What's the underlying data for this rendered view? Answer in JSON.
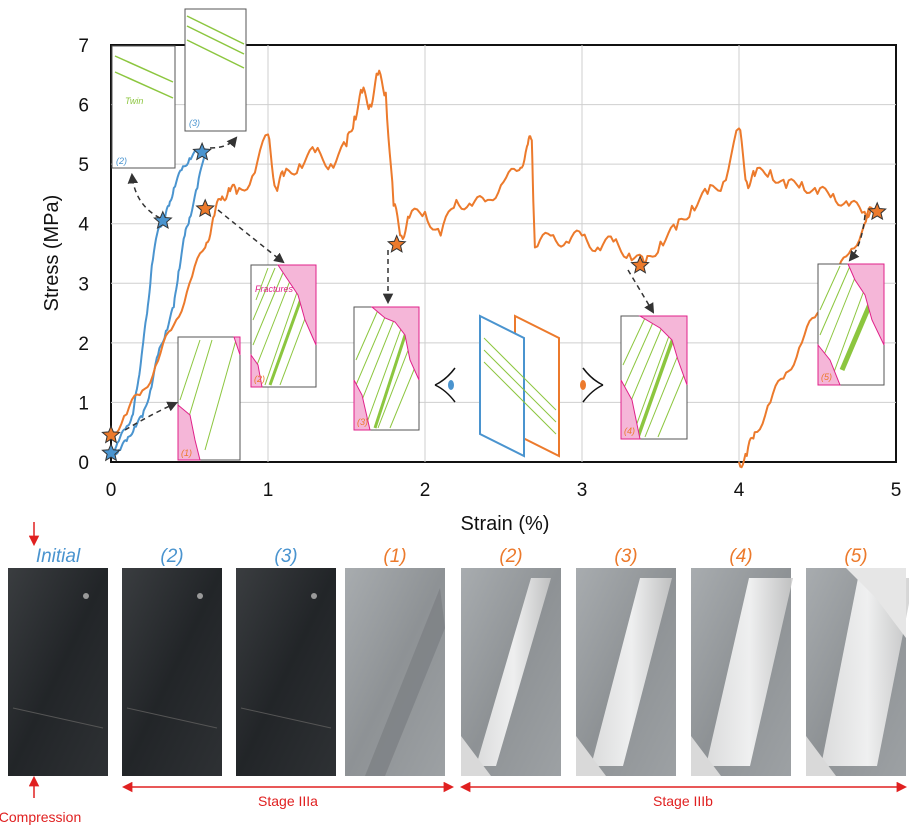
{
  "chart_data": {
    "type": "line",
    "xlabel": "Strain (%)",
    "ylabel": "Stress (MPa)",
    "xlim": [
      0,
      5
    ],
    "ylim": [
      0,
      7
    ],
    "x_ticks": [
      "0",
      "1",
      "2",
      "3",
      "4",
      "5"
    ],
    "y_ticks": [
      "0",
      "1",
      "2",
      "3",
      "4",
      "5",
      "6",
      "7"
    ],
    "grid": true,
    "series": [
      {
        "color": "#4a94cf",
        "points": [
          [
            0,
            0.15
          ],
          [
            0.05,
            0.35
          ],
          [
            0.1,
            0.6
          ],
          [
            0.14,
            0.8
          ],
          [
            0.17,
            1.3
          ],
          [
            0.2,
            1.9
          ],
          [
            0.23,
            2.5
          ],
          [
            0.26,
            3.3
          ],
          [
            0.3,
            3.9
          ],
          [
            0.34,
            4.1
          ],
          [
            0.37,
            4.3
          ],
          [
            0.4,
            4.6
          ],
          [
            0.45,
            4.9
          ],
          [
            0.5,
            5.1
          ],
          [
            0.55,
            5.2
          ],
          [
            0.6,
            5.25
          ],
          [
            0.55,
            4.6
          ],
          [
            0.5,
            4.1
          ],
          [
            0.47,
            3.8
          ],
          [
            0.43,
            3.2
          ],
          [
            0.4,
            2.6
          ],
          [
            0.35,
            2.2
          ],
          [
            0.3,
            1.8
          ],
          [
            0.25,
            1.2
          ],
          [
            0.2,
            0.75
          ],
          [
            0.15,
            0.6
          ],
          [
            0.1,
            0.35
          ],
          [
            0.05,
            0.2
          ],
          [
            0,
            0.15
          ]
        ],
        "markers": [
          [
            0.0,
            0.15
          ],
          [
            0.33,
            4.05
          ],
          [
            0.58,
            5.2
          ]
        ]
      },
      {
        "color": "#ec7a2c",
        "points": [
          [
            0,
            0.5
          ],
          [
            0.1,
            0.8
          ],
          [
            0.2,
            1.2
          ],
          [
            0.3,
            1.7
          ],
          [
            0.4,
            2.3
          ],
          [
            0.5,
            3.0
          ],
          [
            0.6,
            3.6
          ],
          [
            0.65,
            4.1
          ],
          [
            0.7,
            4.4
          ],
          [
            0.75,
            4.6
          ],
          [
            0.8,
            4.5
          ],
          [
            0.9,
            4.8
          ],
          [
            1.0,
            5.5
          ],
          [
            1.05,
            4.6
          ],
          [
            1.1,
            4.8
          ],
          [
            1.2,
            5.0
          ],
          [
            1.3,
            5.2
          ],
          [
            1.4,
            5.0
          ],
          [
            1.5,
            5.3
          ],
          [
            1.55,
            5.8
          ],
          [
            1.6,
            6.2
          ],
          [
            1.65,
            6.0
          ],
          [
            1.7,
            6.5
          ],
          [
            1.75,
            6.2
          ],
          [
            1.8,
            4.3
          ],
          [
            1.85,
            3.8
          ],
          [
            1.9,
            4.1
          ],
          [
            2.0,
            4.2
          ],
          [
            2.1,
            3.8
          ],
          [
            2.2,
            4.4
          ],
          [
            2.3,
            4.3
          ],
          [
            2.4,
            4.4
          ],
          [
            2.5,
            4.7
          ],
          [
            2.6,
            4.9
          ],
          [
            2.65,
            5.3
          ],
          [
            2.68,
            5.4
          ],
          [
            2.7,
            3.6
          ],
          [
            2.8,
            3.8
          ],
          [
            2.9,
            3.7
          ],
          [
            3.0,
            3.8
          ],
          [
            3.1,
            3.6
          ],
          [
            3.2,
            3.7
          ],
          [
            3.3,
            3.5
          ],
          [
            3.4,
            3.3
          ],
          [
            3.5,
            3.7
          ],
          [
            3.6,
            3.9
          ],
          [
            3.7,
            4.3
          ],
          [
            3.8,
            4.5
          ],
          [
            3.9,
            4.7
          ],
          [
            4.0,
            5.6
          ],
          [
            4.05,
            4.7
          ],
          [
            4.1,
            4.8
          ],
          [
            4.2,
            4.9
          ],
          [
            4.3,
            4.6
          ],
          [
            4.4,
            4.7
          ],
          [
            4.5,
            4.5
          ],
          [
            4.6,
            4.5
          ],
          [
            4.7,
            4.3
          ],
          [
            4.8,
            4.2
          ],
          [
            4.85,
            4.25
          ],
          [
            4.8,
            4.0
          ],
          [
            4.7,
            3.5
          ],
          [
            4.6,
            3.0
          ],
          [
            4.5,
            2.5
          ],
          [
            4.4,
            2.0
          ],
          [
            4.3,
            1.5
          ],
          [
            4.2,
            1.0
          ],
          [
            4.1,
            0.5
          ],
          [
            4.05,
            0.1
          ],
          [
            4.0,
            0.0
          ]
        ],
        "markers": [
          [
            0.0,
            0.45
          ],
          [
            0.6,
            4.25
          ],
          [
            1.82,
            3.65
          ],
          [
            3.37,
            3.3
          ],
          [
            4.88,
            4.2
          ]
        ]
      }
    ]
  },
  "insets": {
    "twin_label": "Twin",
    "fractures_label": "Fractures",
    "blue_labels": [
      "(2)",
      "(3)"
    ],
    "orange_labels": [
      "(1)",
      "(2)",
      "(3)",
      "(4)",
      "(5)"
    ]
  },
  "photos": {
    "labels": [
      "Initial",
      "(2)",
      "(3)",
      "(1)",
      "(2)",
      "(3)",
      "(4)",
      "(5)"
    ],
    "label_colors": [
      "#4a94cf",
      "#4a94cf",
      "#4a94cf",
      "#ec7a2c",
      "#ec7a2c",
      "#ec7a2c",
      "#ec7a2c",
      "#ec7a2c"
    ],
    "compression_label": "Compression",
    "stage_a": "Stage IIIa",
    "stage_b": "Stage IIIb"
  }
}
